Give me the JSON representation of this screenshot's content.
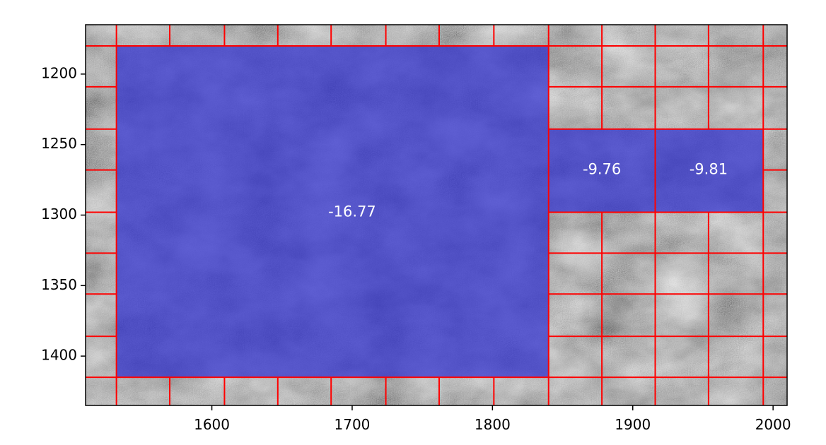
{
  "chart_data": {
    "type": "heatmap",
    "title": "",
    "xlabel": "",
    "ylabel": "",
    "xlim": [
      1510,
      2010
    ],
    "ylim": [
      1435,
      1165
    ],
    "y_inverted": true,
    "grid": "on",
    "colors": {
      "grid": "#ff0000",
      "overlay": "#2b2bd0",
      "background": "#808080",
      "axis": "#000000",
      "label_text": "#ffffff"
    },
    "x_ticks": [
      {
        "value": 1600,
        "label": "1600"
      },
      {
        "value": 1700,
        "label": "1700"
      },
      {
        "value": 1800,
        "label": "1800"
      },
      {
        "value": 1900,
        "label": "1900"
      },
      {
        "value": 2000,
        "label": "2000"
      }
    ],
    "y_ticks": [
      {
        "value": 1200,
        "label": "1200"
      },
      {
        "value": 1250,
        "label": "1250"
      },
      {
        "value": 1300,
        "label": "1300"
      },
      {
        "value": 1350,
        "label": "1350"
      },
      {
        "value": 1400,
        "label": "1400"
      }
    ],
    "grid_x": [
      1532,
      1570,
      1609,
      1647,
      1685,
      1724,
      1762,
      1801,
      1840,
      1878,
      1916,
      1954,
      1993
    ],
    "grid_y": [
      1180,
      1209,
      1239,
      1268,
      1298,
      1327,
      1356,
      1386,
      1415
    ],
    "regions": [
      {
        "x0": 1532,
        "x1": 1840,
        "y0": 1180,
        "y1": 1415,
        "value": 1,
        "label": "-16.77",
        "label_x": 1700,
        "label_y": 1298
      },
      {
        "x0": 1840,
        "x1": 1916,
        "y0": 1239,
        "y1": 1298,
        "value": 1,
        "label": "-9.76",
        "label_x": 1878,
        "label_y": 1268
      },
      {
        "x0": 1916,
        "x1": 1993,
        "y0": 1239,
        "y1": 1298,
        "value": 1,
        "label": "-9.81",
        "label_x": 1954,
        "label_y": 1268
      }
    ]
  }
}
